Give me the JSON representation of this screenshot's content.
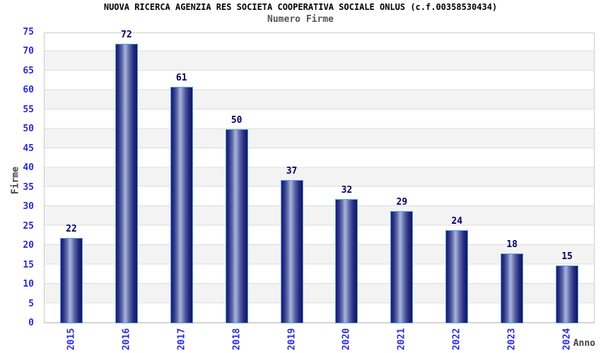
{
  "chart_data": {
    "type": "bar",
    "title": "NUOVA RICERCA AGENZIA RES SOCIETA COOPERATIVA SOCIALE ONLUS (c.f.00358530434)",
    "subtitle": "Numero Firme",
    "categories": [
      "2015",
      "2016",
      "2017",
      "2018",
      "2019",
      "2020",
      "2021",
      "2022",
      "2023",
      "2024"
    ],
    "values": [
      22,
      72,
      61,
      50,
      37,
      32,
      29,
      24,
      18,
      15
    ],
    "xlabel": "Anno",
    "ylabel": "Firme",
    "ylim": [
      0,
      75
    ],
    "ytick_step": 5,
    "grid": true,
    "striped_bands": true,
    "legend": "none",
    "value_labels_shown": true,
    "x_tick_rotation_deg": -90
  },
  "colors": {
    "tick_label": "#2929dd",
    "value_label": "#000066",
    "bar_border": "#55a0e6",
    "bar_dark": "#1b1b6e",
    "bar_mid": "#6272ae",
    "bar_light": "#a6b0d8",
    "stripe": "#f3f3f3",
    "gridline": "#dcdcdc",
    "plot_border": "#cccccc",
    "title_text": "#000000",
    "subtitle_text": "#555555",
    "axis_label_text": "#444444",
    "background": "#ffffff"
  }
}
